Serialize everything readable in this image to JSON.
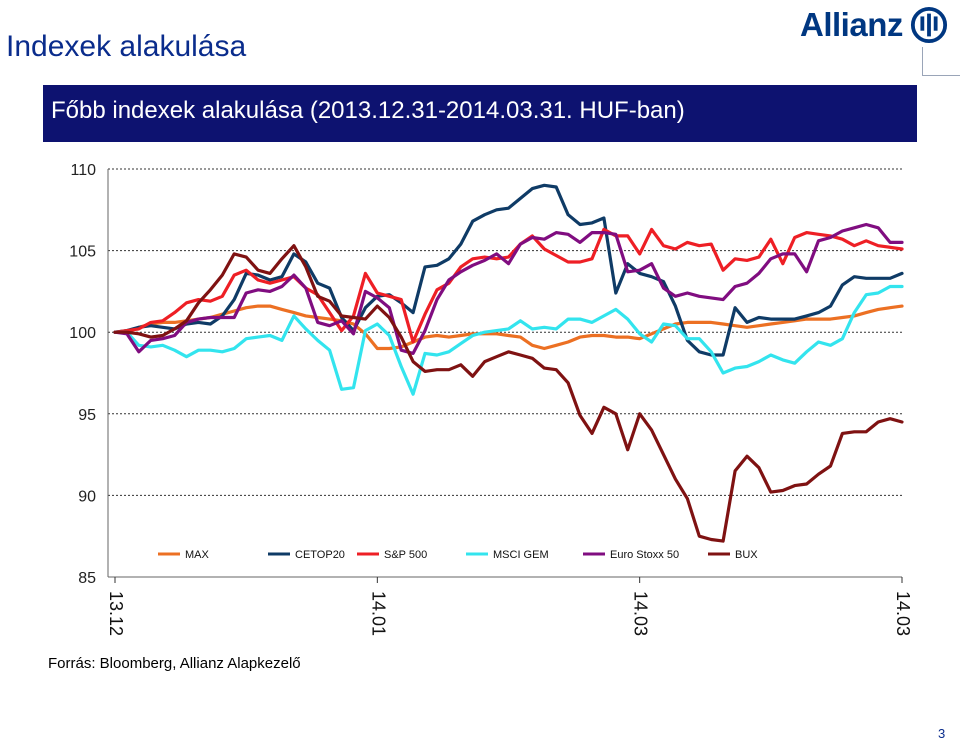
{
  "page": {
    "title": "Indexek alakulása",
    "number": "3"
  },
  "logo": {
    "text": "Allianz"
  },
  "banner": {
    "text": "Főbb indexek alakulása (2013.12.31-2014.03.31.  HUF-ban)"
  },
  "source": "Forrás: Bloomberg, Allianz Alapkezelő",
  "chart_data": {
    "type": "line",
    "title": "Főbb indexek alakulása (2013.12.31-2014.03.31.  HUF-ban)",
    "ylim": [
      85,
      110
    ],
    "yticks": [
      "110",
      "105",
      "100",
      "95",
      "90",
      "85"
    ],
    "xticks": [
      {
        "label": "13.12",
        "index": 0
      },
      {
        "label": "14.01",
        "index": 22
      },
      {
        "label": "14.03",
        "index": 44
      },
      {
        "label": "14.03",
        "index": 66
      }
    ],
    "grid": true,
    "legend": "bottom-inside",
    "series": [
      {
        "name": "MAX",
        "color": "#ec7023",
        "values": [
          100,
          100,
          100.3,
          100.5,
          100.6,
          100.6,
          100.7,
          100.8,
          100.9,
          101.1,
          101.3,
          101.5,
          101.6,
          101.6,
          101.4,
          101.2,
          101,
          100.9,
          100.8,
          100.7,
          100.5,
          99.9,
          99,
          99,
          99.1,
          99.4,
          99.7,
          99.8,
          99.7,
          99.8,
          99.9,
          99.9,
          99.9,
          99.8,
          99.7,
          99.2,
          99,
          99.2,
          99.4,
          99.7,
          99.8,
          99.8,
          99.7,
          99.7,
          99.6,
          99.9,
          100.2,
          100.5,
          100.6,
          100.6,
          100.6,
          100.5,
          100.4,
          100.3,
          100.4,
          100.5,
          100.6,
          100.7,
          100.8,
          100.8,
          100.8,
          100.9,
          101,
          101.2,
          101.4,
          101.5,
          101.6
        ]
      },
      {
        "name": "CETOP20",
        "color": "#0f3b66",
        "values": [
          100,
          100.1,
          100.3,
          100.4,
          100.3,
          100.2,
          100.5,
          100.6,
          100.5,
          101,
          102,
          103.6,
          103.5,
          103.2,
          103.4,
          104.8,
          104.3,
          103,
          102.7,
          100.9,
          100.1,
          101.5,
          102.2,
          102.3,
          101.8,
          101.2,
          104,
          104.1,
          104.5,
          105.4,
          106.8,
          107.2,
          107.5,
          107.6,
          108.2,
          108.8,
          109.0,
          108.9,
          107.2,
          106.6,
          106.7,
          107,
          102.4,
          104.2,
          103.6,
          103.4,
          103.1,
          101.6,
          99.5,
          98.8,
          98.6,
          98.6,
          101.5,
          100.6,
          100.9,
          100.8,
          100.8,
          100.8,
          101,
          101.2,
          101.6,
          102.9,
          103.4,
          103.3,
          103.3,
          103.3,
          103.6
        ]
      },
      {
        "name": "S&P 500",
        "color": "#ee1f25",
        "values": [
          100,
          100.1,
          100.2,
          100.6,
          100.7,
          101.2,
          101.8,
          102,
          101.9,
          102.2,
          103.5,
          103.8,
          103.2,
          103,
          103.2,
          103.4,
          102.7,
          102.3,
          101.2,
          100.1,
          101,
          103.6,
          102.4,
          102.2,
          102,
          99.4,
          101.1,
          102.6,
          103,
          104,
          104.5,
          104.6,
          104.5,
          104.6,
          105.4,
          105.9,
          105.1,
          104.7,
          104.3,
          104.3,
          104.5,
          106.3,
          105.9,
          105.9,
          104.8,
          106.3,
          105.3,
          105.1,
          105.5,
          105.3,
          105.4,
          103.8,
          104.5,
          104.4,
          104.6,
          105.7,
          104.2,
          105.8,
          106.1,
          106,
          105.9,
          105.7,
          105.3,
          105.6,
          105.3,
          105.2,
          105.1
        ]
      },
      {
        "name": "MSCI GEM",
        "color": "#33e4ee",
        "values": [
          100,
          100.0,
          99.2,
          99.1,
          99.2,
          98.9,
          98.5,
          98.9,
          98.9,
          98.8,
          99.0,
          99.6,
          99.7,
          99.8,
          99.5,
          101.0,
          100.2,
          99.5,
          98.9,
          96.5,
          96.6,
          100.1,
          100.5,
          99.8,
          97.9,
          96.2,
          98.7,
          98.6,
          98.8,
          99.3,
          99.8,
          100,
          100.1,
          100.2,
          100.7,
          100.2,
          100.3,
          100.2,
          100.8,
          100.8,
          100.6,
          101.0,
          101.4,
          100.8,
          99.9,
          99.4,
          100.5,
          100.4,
          99.6,
          99.6,
          98.8,
          97.5,
          97.8,
          97.9,
          98.2,
          98.6,
          98.3,
          98.1,
          98.8,
          99.4,
          99.2,
          99.6,
          101.2,
          102.3,
          102.4,
          102.8,
          102.8
        ]
      },
      {
        "name": "Euro Stoxx 50",
        "color": "#800d80",
        "values": [
          100,
          99.9,
          98.8,
          99.5,
          99.6,
          99.8,
          100.6,
          100.8,
          100.9,
          100.9,
          100.9,
          102.4,
          102.6,
          102.5,
          102.8,
          103.5,
          102.7,
          100.6,
          100.4,
          100.7,
          99.9,
          102.5,
          102.1,
          101.5,
          98.9,
          98.7,
          100.1,
          102,
          103.2,
          103.7,
          104.1,
          104.4,
          104.8,
          104.2,
          105.4,
          105.8,
          105.7,
          106.1,
          106,
          105.5,
          106.1,
          106.1,
          106.0,
          103.7,
          103.8,
          104.2,
          102.7,
          102.2,
          102.4,
          102.2,
          102.1,
          102.0,
          102.8,
          103.0,
          103.6,
          104.5,
          104.8,
          104.8,
          103.7,
          105.6,
          105.8,
          106.2,
          106.4,
          106.6,
          106.4,
          105.5,
          105.5
        ]
      },
      {
        "name": "BUX",
        "color": "#7f1212",
        "values": [
          100,
          100,
          99.9,
          99.7,
          99.8,
          100.2,
          100.7,
          101.8,
          102.6,
          103.5,
          104.8,
          104.6,
          103.8,
          103.6,
          104.5,
          105.3,
          104.0,
          102.2,
          101.9,
          101.0,
          100.9,
          100.8,
          101.6,
          100.9,
          99.7,
          98.2,
          97.6,
          97.7,
          97.7,
          98.0,
          97.3,
          98.2,
          98.5,
          98.8,
          98.6,
          98.4,
          97.8,
          97.7,
          96.9,
          94.9,
          93.8,
          95.4,
          95.0,
          92.8,
          95.0,
          94.0,
          92.5,
          91.0,
          89.8,
          87.5,
          87.3,
          87.2,
          91.5,
          92.4,
          91.7,
          90.2,
          90.3,
          90.6,
          90.7,
          91.3,
          91.8,
          93.8,
          93.9,
          93.9,
          94.5,
          94.7,
          94.5
        ]
      }
    ]
  }
}
